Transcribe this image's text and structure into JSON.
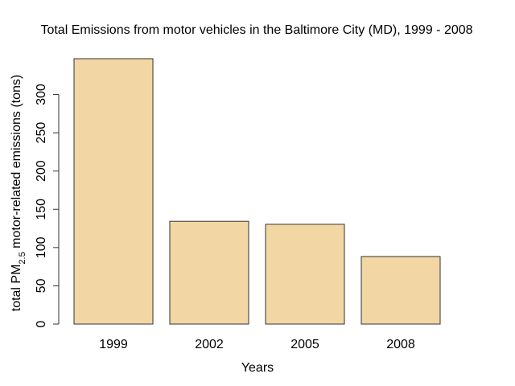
{
  "chart_data": {
    "type": "bar",
    "title": "Total Emissions from motor vehicles in the Baltimore City (MD), 1999 - 2008",
    "xlabel": "Years",
    "ylabel": {
      "prefix": "total PM",
      "subscript": "2.5",
      "suffix": " motor-related emissions (tons)"
    },
    "categories": [
      "1999",
      "2002",
      "2005",
      "2008"
    ],
    "values": [
      346.8,
      134.3,
      130.4,
      88.3
    ],
    "ylim": [
      0,
      346.8
    ],
    "yticks": [
      0,
      50,
      100,
      150,
      200,
      250,
      300
    ],
    "bar_color": "#F2D6A3",
    "grid": false
  }
}
